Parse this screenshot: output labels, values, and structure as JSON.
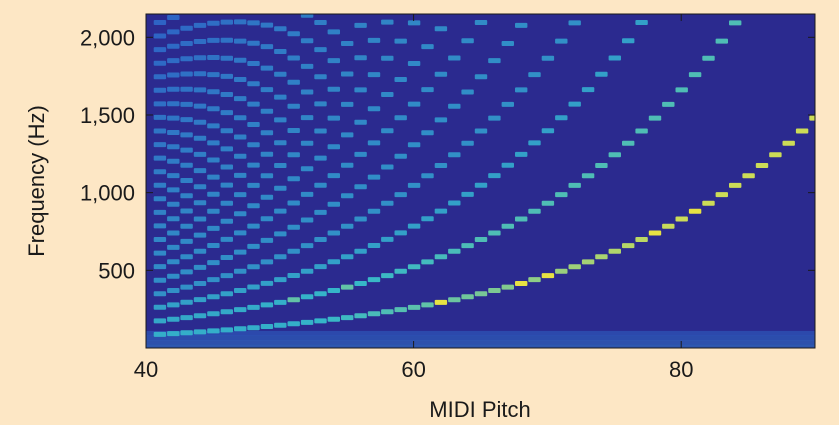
{
  "chart_data": {
    "type": "heatmap",
    "title": "",
    "xlabel": "MIDI Pitch",
    "ylabel": "Frequency (Hz)",
    "xlim": [
      40,
      90
    ],
    "ylim": [
      0,
      2150
    ],
    "x_ticks": [
      {
        "value": 40,
        "label": "40"
      },
      {
        "value": 60,
        "label": "60"
      },
      {
        "value": 80,
        "label": "80"
      }
    ],
    "y_ticks": [
      {
        "value": 500,
        "label": "500"
      },
      {
        "value": 1000,
        "label": "1,000"
      },
      {
        "value": 1500,
        "label": "1,500"
      },
      {
        "value": 2000,
        "label": "2,000"
      }
    ],
    "pitch_range": [
      41,
      90
    ],
    "harmonics": 25,
    "grid": false,
    "colormap": {
      "background": "#2b2a8f",
      "low": "#2d59c4",
      "mid": "#35b7c9",
      "high": "#f2e53a"
    }
  }
}
